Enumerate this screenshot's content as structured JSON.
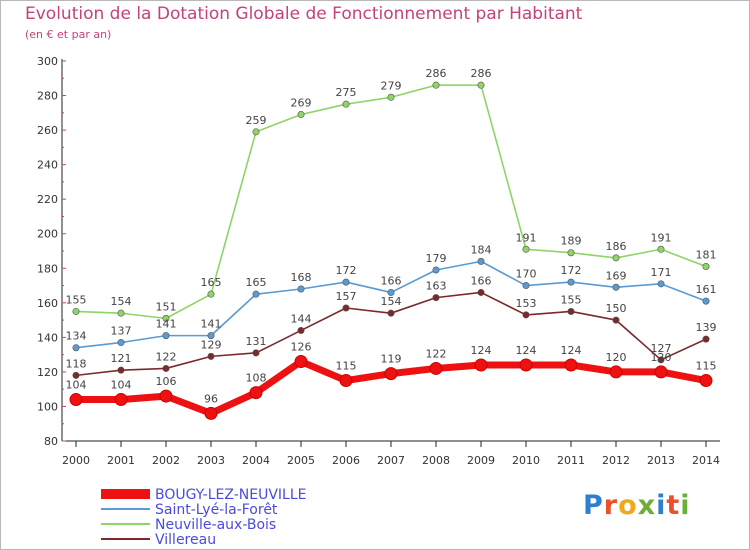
{
  "header": {
    "title": "Evolution de la Dotation Globale de Fonctionnement par Habitant",
    "subtitle": "(en € et par an)"
  },
  "logo": {
    "text": "Proxiti",
    "letters": [
      {
        "ch": "P",
        "color": "#2e7fd0"
      },
      {
        "ch": "r",
        "color": "#e8512a"
      },
      {
        "ch": "o",
        "color": "#f0a81c"
      },
      {
        "ch": "x",
        "color": "#6cae38"
      },
      {
        "ch": "i",
        "color": "#2e7fd0"
      },
      {
        "ch": "t",
        "color": "#e8512a"
      },
      {
        "ch": "i",
        "color": "#6cae38"
      }
    ]
  },
  "chart_data": {
    "type": "line",
    "title": "Evolution de la Dotation Globale de Fonctionnement par Habitant",
    "subtitle": "(en € et par an)",
    "xlabel": "",
    "ylabel": "",
    "x": [
      "2000",
      "2001",
      "2002",
      "2003",
      "2004",
      "2005",
      "2006",
      "2007",
      "2008",
      "2009",
      "2010",
      "2011",
      "2012",
      "2013",
      "2014"
    ],
    "ylim": [
      80,
      300
    ],
    "yticks": [
      80,
      100,
      120,
      140,
      160,
      180,
      200,
      220,
      240,
      260,
      280,
      300
    ],
    "grid": false,
    "legend_position": "bottom-left",
    "series": [
      {
        "name": "Neuville-aux-Bois",
        "color": "#8fd466",
        "width": "thin",
        "values": [
          155,
          154,
          151,
          165,
          259,
          269,
          275,
          279,
          286,
          286,
          191,
          189,
          186,
          191,
          181
        ]
      },
      {
        "name": "Saint-Lyé-la-Forêt",
        "color": "#5a9bd4",
        "width": "thin",
        "values": [
          134,
          137,
          141,
          141,
          165,
          168,
          172,
          166,
          179,
          184,
          170,
          172,
          169,
          171,
          161
        ]
      },
      {
        "name": "Villereau",
        "color": "#7a2a2a",
        "width": "thin",
        "values": [
          118,
          121,
          122,
          129,
          131,
          144,
          157,
          154,
          163,
          166,
          153,
          155,
          150,
          127,
          139
        ]
      },
      {
        "name": "BOUGY-LEZ-NEUVILLE",
        "color": "#ee1111",
        "width": "thick",
        "values": [
          104,
          104,
          106,
          96,
          108,
          126,
          115,
          119,
          122,
          124,
          124,
          124,
          120,
          120,
          115
        ]
      }
    ],
    "legend_order": [
      "BOUGY-LEZ-NEUVILLE",
      "Saint-Lyé-la-Forêt",
      "Neuville-aux-Bois",
      "Villereau"
    ]
  }
}
